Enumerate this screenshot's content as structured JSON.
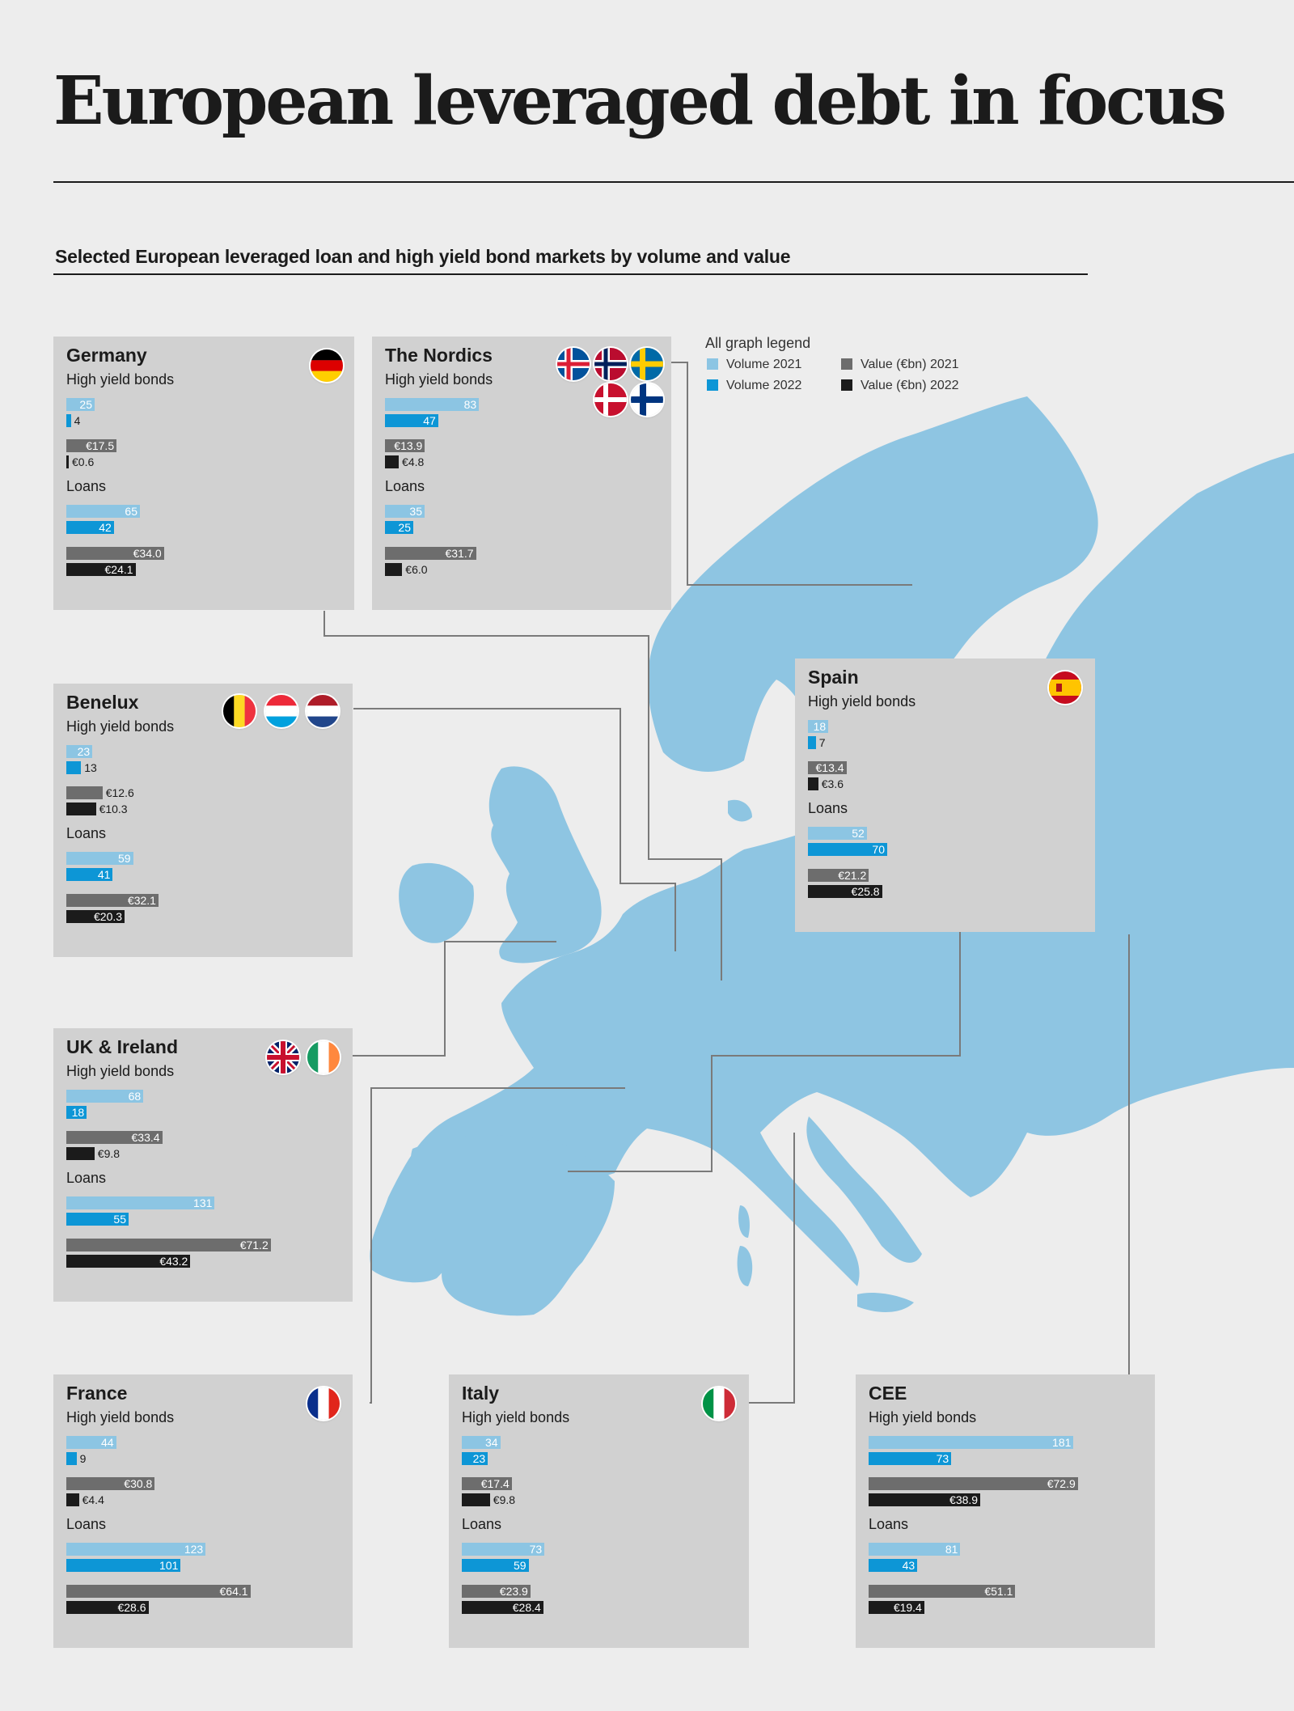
{
  "title": "European leveraged debt in focus",
  "subtitle": "Selected European leveraged loan and high yield bond markets by volume and value",
  "colors": {
    "volume_2021": "#8cc5e3",
    "volume_2022": "#0d96d6",
    "value_2021": "#6d6d6d",
    "value_2022": "#1b1b1b",
    "panel_bg": "#d1d1d1",
    "page_bg": "#ededed",
    "map": "#8ec5e2"
  },
  "legend": {
    "title": "All graph legend",
    "items": [
      {
        "label": "Volume 2021",
        "key": "volume_2021"
      },
      {
        "label": "Volume 2022",
        "key": "volume_2022"
      },
      {
        "label": "Value (€bn) 2021",
        "key": "value_2021"
      },
      {
        "label": "Value (€bn) 2022",
        "key": "value_2022"
      }
    ]
  },
  "section_labels": {
    "hyb": "High yield bonds",
    "loans": "Loans"
  },
  "chart_data": {
    "type": "bar",
    "series_names": [
      "Volume 2021",
      "Volume 2022",
      "Value (€bn) 2021",
      "Value (€bn) 2022"
    ],
    "regions": [
      {
        "name": "Germany",
        "flags": [
          "de"
        ],
        "high_yield_bonds": {
          "volume_2021": 25,
          "volume_2022": 4,
          "value_2021": 17.5,
          "value_2022": 0.6
        },
        "loans": {
          "volume_2021": 65,
          "volume_2022": 42,
          "value_2021": 34.0,
          "value_2022": 24.1
        },
        "labels": {
          "hv21": "25",
          "hv22": "4",
          "hval21": "€17.5",
          "hval22": "€0.6",
          "lv21": "65",
          "lv22": "42",
          "lval21": "€34.0",
          "lval22": "€24.1"
        }
      },
      {
        "name": "The Nordics",
        "flags": [
          "is",
          "no",
          "se",
          "dk",
          "fi"
        ],
        "high_yield_bonds": {
          "volume_2021": 83,
          "volume_2022": 47,
          "value_2021": 13.9,
          "value_2022": 4.8
        },
        "loans": {
          "volume_2021": 35,
          "volume_2022": 25,
          "value_2021": 31.7,
          "value_2022": 6.0
        },
        "labels": {
          "hv21": "83",
          "hv22": "47",
          "hval21": "€13.9",
          "hval22": "€4.8",
          "lv21": "35",
          "lv22": "25",
          "lval21": "€31.7",
          "lval22": "€6.0"
        }
      },
      {
        "name": "Spain",
        "flags": [
          "es"
        ],
        "high_yield_bonds": {
          "volume_2021": 18,
          "volume_2022": 7,
          "value_2021": 13.4,
          "value_2022": 3.6
        },
        "loans": {
          "volume_2021": 52,
          "volume_2022": 70,
          "value_2021": 21.2,
          "value_2022": 25.8
        },
        "labels": {
          "hv21": "18",
          "hv22": "7",
          "hval21": "€13.4",
          "hval22": "€3.6",
          "lv21": "52",
          "lv22": "70",
          "lval21": "€21.2",
          "lval22": "€25.8"
        }
      },
      {
        "name": "Benelux",
        "flags": [
          "be",
          "lu",
          "nl"
        ],
        "high_yield_bonds": {
          "volume_2021": 23,
          "volume_2022": 13,
          "value_2021": 12.6,
          "value_2022": 10.3
        },
        "loans": {
          "volume_2021": 59,
          "volume_2022": 41,
          "value_2021": 32.1,
          "value_2022": 20.3
        },
        "labels": {
          "hv21": "23",
          "hv22": "13",
          "hval21": "€12.6",
          "hval22": "€10.3",
          "lv21": "59",
          "lv22": "41",
          "lval21": "€32.1",
          "lval22": "€20.3"
        }
      },
      {
        "name": "UK & Ireland",
        "flags": [
          "uk",
          "ie"
        ],
        "high_yield_bonds": {
          "volume_2021": 68,
          "volume_2022": 18,
          "value_2021": 33.4,
          "value_2022": 9.8
        },
        "loans": {
          "volume_2021": 131,
          "volume_2022": 55,
          "value_2021": 71.2,
          "value_2022": 43.2
        },
        "labels": {
          "hv21": "68",
          "hv22": "18",
          "hval21": "€33.4",
          "hval22": "€9.8",
          "lv21": "131",
          "lv22": "55",
          "lval21": "€71.2",
          "lval22": "€43.2"
        }
      },
      {
        "name": "France",
        "flags": [
          "fr"
        ],
        "high_yield_bonds": {
          "volume_2021": 44,
          "volume_2022": 9,
          "value_2021": 30.8,
          "value_2022": 4.4
        },
        "loans": {
          "volume_2021": 123,
          "volume_2022": 101,
          "value_2021": 64.1,
          "value_2022": 28.6
        },
        "labels": {
          "hv21": "44",
          "hv22": "9",
          "hval21": "€30.8",
          "hval22": "€4.4",
          "lv21": "123",
          "lv22": "101",
          "lval21": "€64.1",
          "lval22": "€28.6"
        }
      },
      {
        "name": "Italy",
        "flags": [
          "it"
        ],
        "high_yield_bonds": {
          "volume_2021": 34,
          "volume_2022": 23,
          "value_2021": 17.4,
          "value_2022": 9.8
        },
        "loans": {
          "volume_2021": 73,
          "volume_2022": 59,
          "value_2021": 23.9,
          "value_2022": 28.4
        },
        "labels": {
          "hv21": "34",
          "hv22": "23",
          "hval21": "€17.4",
          "hval22": "€9.8",
          "lv21": "73",
          "lv22": "59",
          "lval21": "€23.9",
          "lval22": "€28.4"
        }
      },
      {
        "name": "CEE",
        "flags": [],
        "high_yield_bonds": {
          "volume_2021": 181,
          "volume_2022": 73,
          "value_2021": 72.9,
          "value_2022": 38.9
        },
        "loans": {
          "volume_2021": 81,
          "volume_2022": 43,
          "value_2021": 51.1,
          "value_2022": 19.4
        },
        "labels": {
          "hv21": "181",
          "hv22": "73",
          "hval21": "€72.9",
          "hval22": "€38.9",
          "lv21": "81",
          "lv22": "43",
          "lval21": "€51.1",
          "lval22": "€19.4"
        }
      }
    ]
  }
}
